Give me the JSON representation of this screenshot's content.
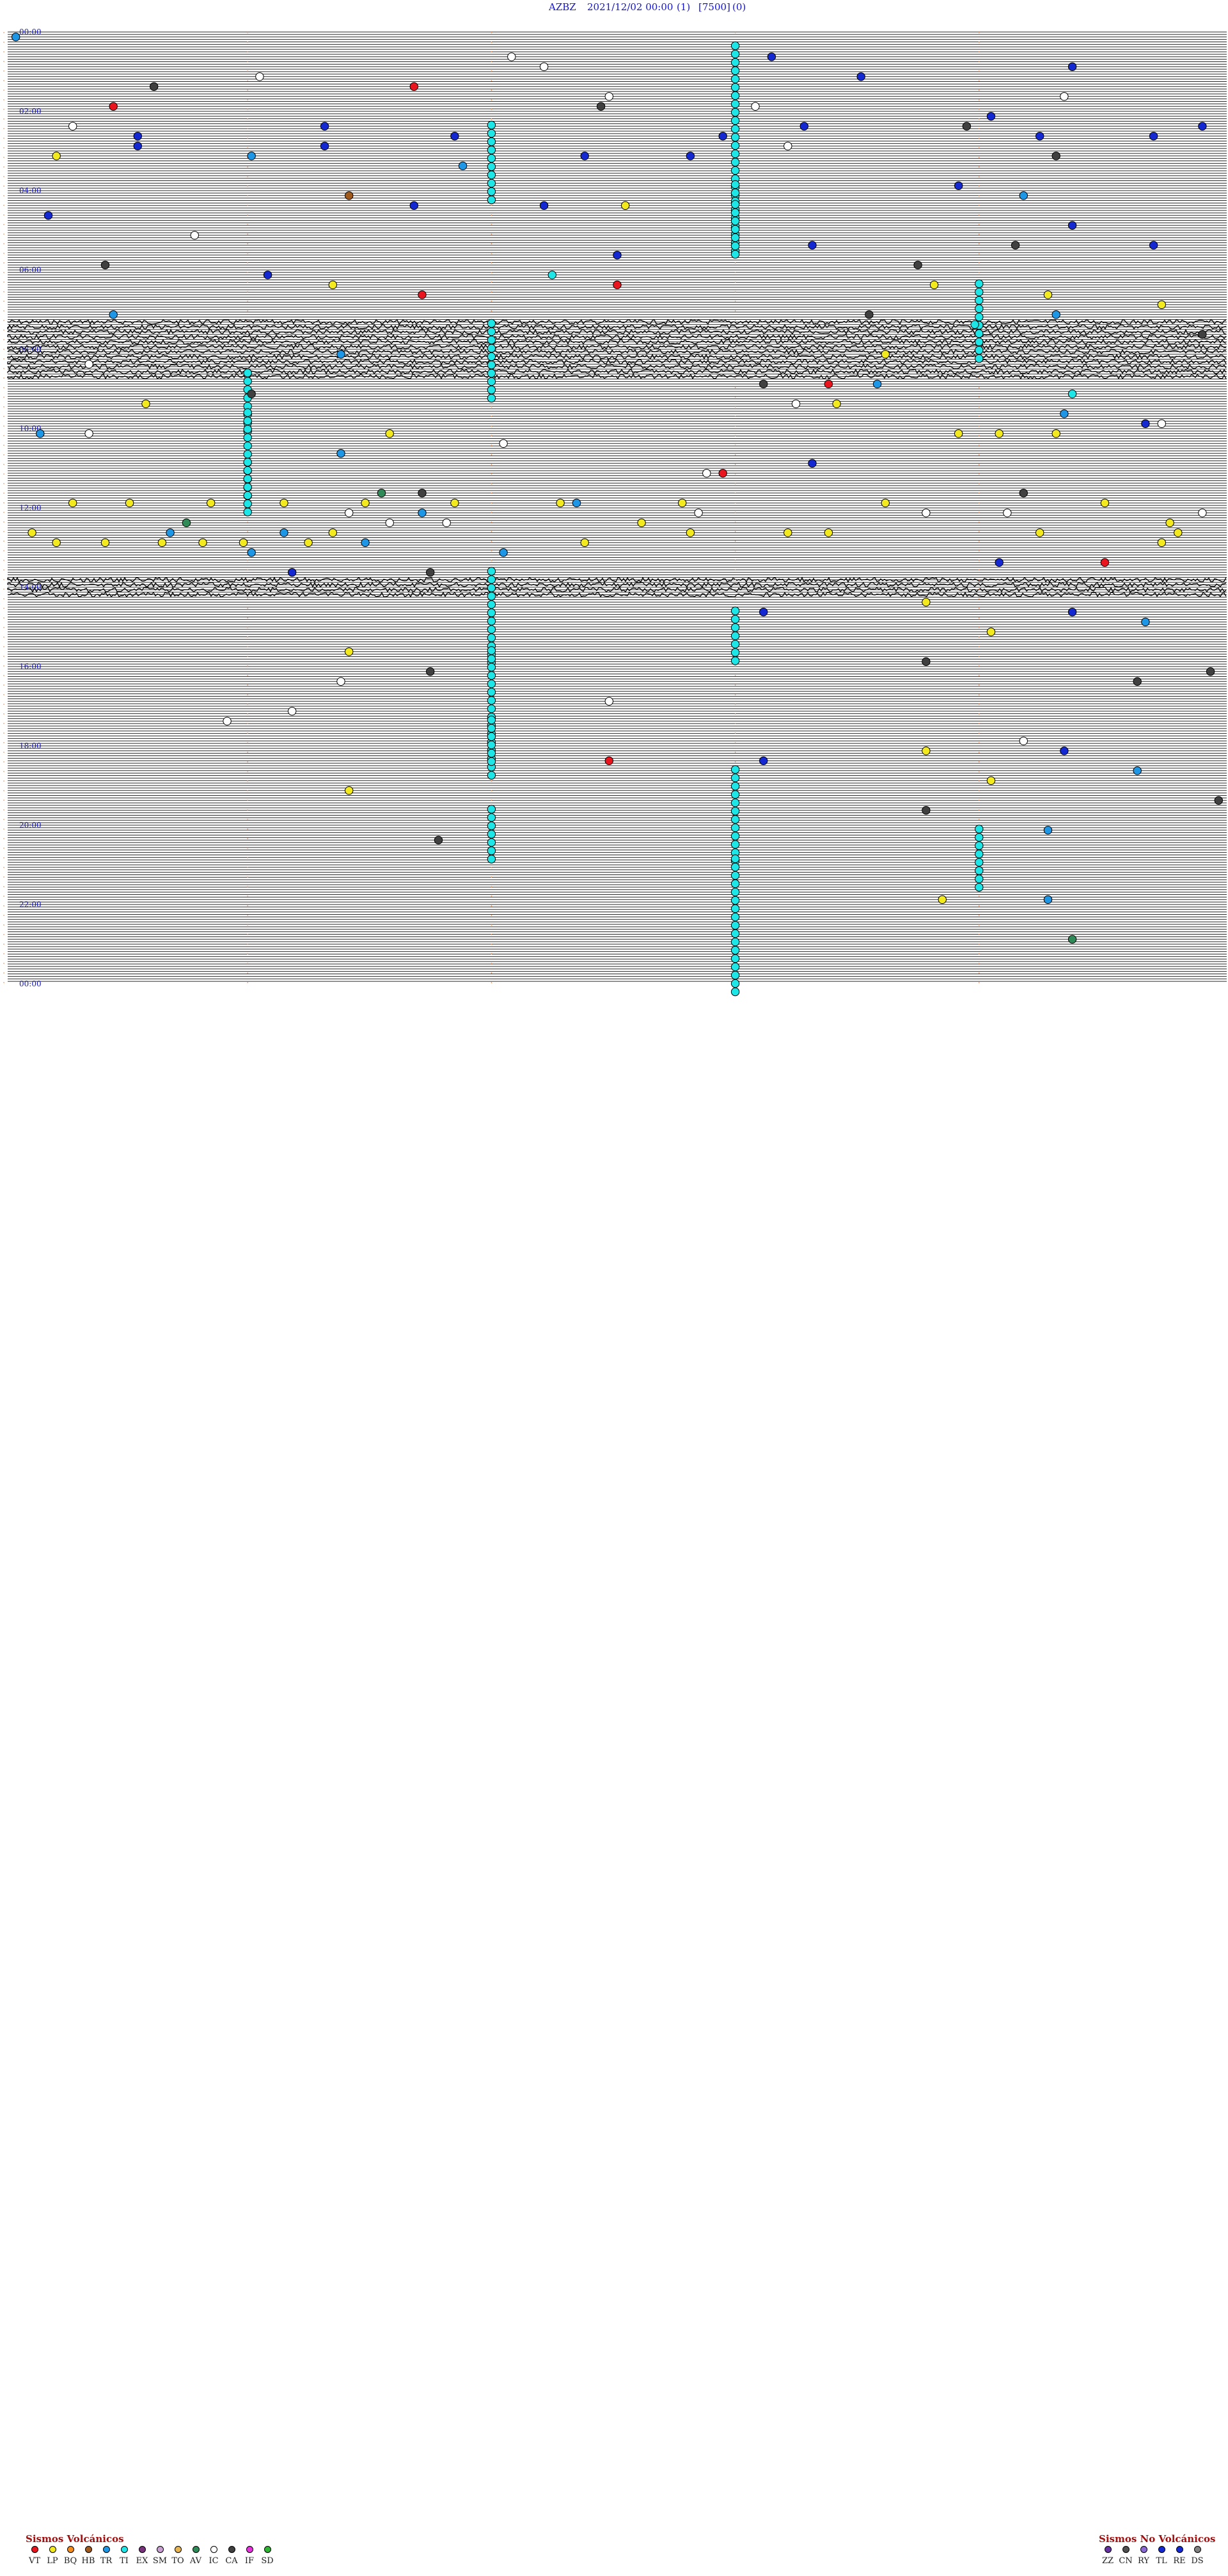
{
  "header": {
    "station": "AZBZ",
    "datetime": "2021/12/02 00:00",
    "channel": "(1)",
    "scale": "[7500]",
    "filter": "(0)"
  },
  "chart_data": {
    "type": "scatter",
    "title": "AZBZ    2021/12/02 00:00    (1)    [7500]  (0)",
    "y_axis": "hour of day (trace rows, one per 15 min)",
    "x_axis": "minute within row",
    "xlim": [
      0,
      15
    ],
    "ylim_hours": [
      0,
      24
    ],
    "hour_labels": [
      "00:00",
      "02:00",
      "04:00",
      "06:00",
      "08:00",
      "10:00",
      "12:00",
      "14:00",
      "16:00",
      "18:00",
      "20:00",
      "22:00",
      "00:00"
    ],
    "grid": true,
    "event_types": {
      "VT": "#e8141e",
      "LP": "#f2ea1e",
      "BQ": "#f58c1e",
      "HB": "#a05a1e",
      "TR": "#1e96e6",
      "TI": "#1ee6e6",
      "EX": "#78327c",
      "SM": "#c8a0d2",
      "TO": "#e6b450",
      "AV": "#2e8b57",
      "IC": "#ffffff",
      "CA": "#404040",
      "IF": "#e632dc",
      "SD": "#2eb432",
      "ZZ": "#6432a0",
      "CN": "#505050",
      "RY": "#8a6ad2",
      "TL": "#1428d2",
      "RE": "#1428d2",
      "DS": "#808080"
    },
    "events": [
      {
        "t": "00:00",
        "x": 0.1,
        "type": "TR"
      },
      {
        "t": "00:30",
        "x": 6.2,
        "type": "IC"
      },
      {
        "t": "00:30",
        "x": 9.4,
        "type": "TL"
      },
      {
        "t": "00:45",
        "x": 13.1,
        "type": "TL"
      },
      {
        "t": "00:45",
        "x": 6.6,
        "type": "IC"
      },
      {
        "t": "01:00",
        "x": 3.1,
        "type": "IC"
      },
      {
        "t": "01:00",
        "x": 10.5,
        "type": "TL"
      },
      {
        "t": "01:15",
        "x": 1.8,
        "type": "CA"
      },
      {
        "t": "01:15",
        "x": 5.0,
        "type": "VT"
      },
      {
        "t": "01:30",
        "x": 7.4,
        "type": "IC"
      },
      {
        "t": "01:30",
        "x": 13.0,
        "type": "IC"
      },
      {
        "t": "01:45",
        "x": 1.3,
        "type": "VT"
      },
      {
        "t": "01:45",
        "x": 7.3,
        "type": "CA"
      },
      {
        "t": "01:45",
        "x": 9.2,
        "type": "IC"
      },
      {
        "t": "02:00",
        "x": 12.1,
        "type": "TL"
      },
      {
        "t": "02:15",
        "x": 0.8,
        "type": "IC"
      },
      {
        "t": "02:15",
        "x": 3.9,
        "type": "TL"
      },
      {
        "t": "02:15",
        "x": 9.8,
        "type": "TL"
      },
      {
        "t": "02:15",
        "x": 11.8,
        "type": "CA"
      },
      {
        "t": "02:15",
        "x": 14.7,
        "type": "TL"
      },
      {
        "t": "02:30",
        "x": 1.6,
        "type": "TL"
      },
      {
        "t": "02:30",
        "x": 5.5,
        "type": "TL"
      },
      {
        "t": "02:30",
        "x": 8.8,
        "type": "TL"
      },
      {
        "t": "02:30",
        "x": 12.7,
        "type": "TL"
      },
      {
        "t": "02:30",
        "x": 14.1,
        "type": "TL"
      },
      {
        "t": "02:45",
        "x": 1.6,
        "type": "TL"
      },
      {
        "t": "02:45",
        "x": 3.9,
        "type": "TL"
      },
      {
        "t": "02:45",
        "x": 9.6,
        "type": "IC"
      },
      {
        "t": "03:00",
        "x": 0.6,
        "type": "LP"
      },
      {
        "t": "03:00",
        "x": 3.0,
        "type": "TR"
      },
      {
        "t": "03:00",
        "x": 7.1,
        "type": "TL"
      },
      {
        "t": "03:00",
        "x": 8.4,
        "type": "TL"
      },
      {
        "t": "03:00",
        "x": 12.9,
        "type": "CA"
      },
      {
        "t": "03:15",
        "x": 5.6,
        "type": "TR"
      },
      {
        "t": "03:45",
        "x": 11.7,
        "type": "TL"
      },
      {
        "t": "04:00",
        "x": 4.2,
        "type": "HB"
      },
      {
        "t": "04:00",
        "x": 12.5,
        "type": "TR"
      },
      {
        "t": "04:15",
        "x": 6.6,
        "type": "TL"
      },
      {
        "t": "04:15",
        "x": 5.0,
        "type": "TL"
      },
      {
        "t": "04:15",
        "x": 7.6,
        "type": "LP"
      },
      {
        "t": "04:30",
        "x": 0.5,
        "type": "TL"
      },
      {
        "t": "04:45",
        "x": 13.1,
        "type": "TL"
      },
      {
        "t": "05:00",
        "x": 2.3,
        "type": "IC"
      },
      {
        "t": "05:15",
        "x": 9.9,
        "type": "TL"
      },
      {
        "t": "05:15",
        "x": 12.4,
        "type": "CA"
      },
      {
        "t": "05:15",
        "x": 14.1,
        "type": "TL"
      },
      {
        "t": "05:30",
        "x": 7.5,
        "type": "TL"
      },
      {
        "t": "05:45",
        "x": 11.2,
        "type": "CA"
      },
      {
        "t": "05:45",
        "x": 1.2,
        "type": "CA"
      },
      {
        "t": "06:00",
        "x": 6.7,
        "type": "TI"
      },
      {
        "t": "06:00",
        "x": 3.2,
        "type": "TL"
      },
      {
        "t": "06:15",
        "x": 11.4,
        "type": "LP"
      },
      {
        "t": "06:15",
        "x": 7.5,
        "type": "VT"
      },
      {
        "t": "06:15",
        "x": 4.0,
        "type": "LP"
      },
      {
        "t": "06:30",
        "x": 12.8,
        "type": "LP"
      },
      {
        "t": "06:30",
        "x": 5.1,
        "type": "VT"
      },
      {
        "t": "06:45",
        "x": 14.2,
        "type": "LP"
      },
      {
        "t": "07:00",
        "x": 1.3,
        "type": "TR"
      },
      {
        "t": "07:00",
        "x": 10.6,
        "type": "CA"
      },
      {
        "t": "07:00",
        "x": 12.9,
        "type": "TR"
      },
      {
        "t": "07:15",
        "x": 11.9,
        "type": "TI"
      },
      {
        "t": "07:30",
        "x": 14.7,
        "type": "CA"
      },
      {
        "t": "08:00",
        "x": 4.1,
        "type": "TR"
      },
      {
        "t": "08:00",
        "x": 10.8,
        "type": "LP"
      },
      {
        "t": "08:15",
        "x": 1.0,
        "type": "IC"
      },
      {
        "t": "08:45",
        "x": 10.1,
        "type": "VT"
      },
      {
        "t": "08:45",
        "x": 10.7,
        "type": "TR"
      },
      {
        "t": "08:45",
        "x": 9.3,
        "type": "CA"
      },
      {
        "t": "09:00",
        "x": 13.1,
        "type": "TI"
      },
      {
        "t": "09:00",
        "x": 3.0,
        "type": "CA"
      },
      {
        "t": "09:15",
        "x": 1.7,
        "type": "LP"
      },
      {
        "t": "09:15",
        "x": 9.7,
        "type": "IC"
      },
      {
        "t": "09:15",
        "x": 10.2,
        "type": "LP"
      },
      {
        "t": "09:30",
        "x": 13.0,
        "type": "TR"
      },
      {
        "t": "09:45",
        "x": 14.0,
        "type": "TL"
      },
      {
        "t": "09:45",
        "x": 14.2,
        "type": "IC"
      },
      {
        "t": "10:00",
        "x": 0.4,
        "type": "TR"
      },
      {
        "t": "10:00",
        "x": 1.0,
        "type": "IC"
      },
      {
        "t": "10:00",
        "x": 4.7,
        "type": "LP"
      },
      {
        "t": "10:00",
        "x": 11.7,
        "type": "LP"
      },
      {
        "t": "10:00",
        "x": 12.2,
        "type": "LP"
      },
      {
        "t": "10:00",
        "x": 12.9,
        "type": "LP"
      },
      {
        "t": "10:15",
        "x": 6.1,
        "type": "IC"
      },
      {
        "t": "10:30",
        "x": 4.1,
        "type": "TR"
      },
      {
        "t": "10:45",
        "x": 9.9,
        "type": "TL"
      },
      {
        "t": "11:00",
        "x": 8.6,
        "type": "IC"
      },
      {
        "t": "11:00",
        "x": 8.8,
        "type": "VT"
      },
      {
        "t": "11:30",
        "x": 12.5,
        "type": "CA"
      },
      {
        "t": "11:30",
        "x": 4.6,
        "type": "AV"
      },
      {
        "t": "11:30",
        "x": 5.1,
        "type": "CA"
      },
      {
        "t": "11:45",
        "x": 0.8,
        "type": "LP"
      },
      {
        "t": "11:45",
        "x": 1.5,
        "type": "LP"
      },
      {
        "t": "11:45",
        "x": 2.5,
        "type": "LP"
      },
      {
        "t": "11:45",
        "x": 3.4,
        "type": "LP"
      },
      {
        "t": "11:45",
        "x": 4.4,
        "type": "LP"
      },
      {
        "t": "11:45",
        "x": 5.5,
        "type": "LP"
      },
      {
        "t": "11:45",
        "x": 6.8,
        "type": "LP"
      },
      {
        "t": "11:45",
        "x": 7.0,
        "type": "TR"
      },
      {
        "t": "11:45",
        "x": 8.3,
        "type": "LP"
      },
      {
        "t": "11:45",
        "x": 10.8,
        "type": "LP"
      },
      {
        "t": "11:45",
        "x": 13.5,
        "type": "LP"
      },
      {
        "t": "12:00",
        "x": 4.2,
        "type": "IC"
      },
      {
        "t": "12:00",
        "x": 5.1,
        "type": "TR"
      },
      {
        "t": "12:00",
        "x": 8.5,
        "type": "IC"
      },
      {
        "t": "12:00",
        "x": 11.3,
        "type": "IC"
      },
      {
        "t": "12:00",
        "x": 12.3,
        "type": "IC"
      },
      {
        "t": "12:00",
        "x": 14.7,
        "type": "IC"
      },
      {
        "t": "12:15",
        "x": 4.7,
        "type": "IC"
      },
      {
        "t": "12:15",
        "x": 5.4,
        "type": "IC"
      },
      {
        "t": "12:15",
        "x": 2.2,
        "type": "AV"
      },
      {
        "t": "12:15",
        "x": 7.8,
        "type": "LP"
      },
      {
        "t": "12:15",
        "x": 14.3,
        "type": "LP"
      },
      {
        "t": "12:30",
        "x": 0.3,
        "type": "LP"
      },
      {
        "t": "12:30",
        "x": 2.0,
        "type": "TR"
      },
      {
        "t": "12:30",
        "x": 3.4,
        "type": "TR"
      },
      {
        "t": "12:30",
        "x": 4.0,
        "type": "LP"
      },
      {
        "t": "12:30",
        "x": 8.4,
        "type": "LP"
      },
      {
        "t": "12:30",
        "x": 9.6,
        "type": "LP"
      },
      {
        "t": "12:30",
        "x": 10.1,
        "type": "LP"
      },
      {
        "t": "12:30",
        "x": 12.7,
        "type": "LP"
      },
      {
        "t": "12:30",
        "x": 14.4,
        "type": "LP"
      },
      {
        "t": "12:45",
        "x": 0.6,
        "type": "LP"
      },
      {
        "t": "12:45",
        "x": 1.2,
        "type": "LP"
      },
      {
        "t": "12:45",
        "x": 1.9,
        "type": "LP"
      },
      {
        "t": "12:45",
        "x": 2.4,
        "type": "LP"
      },
      {
        "t": "12:45",
        "x": 2.9,
        "type": "LP"
      },
      {
        "t": "12:45",
        "x": 3.7,
        "type": "LP"
      },
      {
        "t": "12:45",
        "x": 4.4,
        "type": "TR"
      },
      {
        "t": "12:45",
        "x": 7.1,
        "type": "LP"
      },
      {
        "t": "12:45",
        "x": 14.2,
        "type": "LP"
      },
      {
        "t": "13:00",
        "x": 3.0,
        "type": "TR"
      },
      {
        "t": "13:00",
        "x": 6.1,
        "type": "TR"
      },
      {
        "t": "13:15",
        "x": 12.2,
        "type": "TL"
      },
      {
        "t": "13:15",
        "x": 13.5,
        "type": "VT"
      },
      {
        "t": "13:30",
        "x": 3.5,
        "type": "TL"
      },
      {
        "t": "13:30",
        "x": 5.2,
        "type": "CA"
      },
      {
        "t": "14:15",
        "x": 11.3,
        "type": "LP"
      },
      {
        "t": "14:30",
        "x": 13.1,
        "type": "TL"
      },
      {
        "t": "14:30",
        "x": 9.3,
        "type": "TL"
      },
      {
        "t": "14:45",
        "x": 14.0,
        "type": "TR"
      },
      {
        "t": "15:00",
        "x": 12.1,
        "type": "LP"
      },
      {
        "t": "15:30",
        "x": 4.2,
        "type": "LP"
      },
      {
        "t": "15:45",
        "x": 11.3,
        "type": "CA"
      },
      {
        "t": "16:00",
        "x": 5.2,
        "type": "CA"
      },
      {
        "t": "16:00",
        "x": 14.8,
        "type": "CA"
      },
      {
        "t": "16:15",
        "x": 13.9,
        "type": "CA"
      },
      {
        "t": "16:15",
        "x": 4.1,
        "type": "IC"
      },
      {
        "t": "16:45",
        "x": 7.4,
        "type": "IC"
      },
      {
        "t": "17:00",
        "x": 3.5,
        "type": "IC"
      },
      {
        "t": "17:15",
        "x": 2.7,
        "type": "IC"
      },
      {
        "t": "17:45",
        "x": 12.5,
        "type": "IC"
      },
      {
        "t": "18:00",
        "x": 11.3,
        "type": "LP"
      },
      {
        "t": "18:00",
        "x": 13.0,
        "type": "TL"
      },
      {
        "t": "18:15",
        "x": 7.4,
        "type": "VT"
      },
      {
        "t": "18:15",
        "x": 9.3,
        "type": "TL"
      },
      {
        "t": "18:30",
        "x": 13.9,
        "type": "TR"
      },
      {
        "t": "18:45",
        "x": 12.1,
        "type": "LP"
      },
      {
        "t": "19:00",
        "x": 4.2,
        "type": "LP"
      },
      {
        "t": "19:15",
        "x": 14.9,
        "type": "CA"
      },
      {
        "t": "19:30",
        "x": 11.3,
        "type": "CA"
      },
      {
        "t": "20:00",
        "x": 12.8,
        "type": "TR"
      },
      {
        "t": "20:15",
        "x": 5.3,
        "type": "CA"
      },
      {
        "t": "21:45",
        "x": 11.5,
        "type": "LP"
      },
      {
        "t": "21:45",
        "x": 12.8,
        "type": "TR"
      },
      {
        "t": "22:45",
        "x": 13.1,
        "type": "AV"
      }
    ],
    "ti_swarms": [
      {
        "col": 9,
        "start_row": 1,
        "count": 23
      },
      {
        "col": 6,
        "start_row": 9,
        "count": 10
      },
      {
        "col": 9,
        "start_row": 15,
        "count": 9
      },
      {
        "col": 9,
        "start_row": 17,
        "count": 7
      },
      {
        "col": 12,
        "start_row": 25,
        "count": 10
      },
      {
        "col": 6,
        "start_row": 29,
        "count": 10
      },
      {
        "col": 3,
        "start_row": 34,
        "count": 8
      },
      {
        "col": 3,
        "start_row": 38,
        "count": 11
      },
      {
        "col": 3,
        "start_row": 43,
        "count": 7
      },
      {
        "col": 6,
        "start_row": 54,
        "count": 12
      },
      {
        "col": 9,
        "start_row": 58,
        "count": 7
      },
      {
        "col": 6,
        "start_row": 62,
        "count": 16
      },
      {
        "col": 6,
        "start_row": 69,
        "count": 6
      },
      {
        "col": 9,
        "start_row": 74,
        "count": 12
      },
      {
        "col": 6,
        "start_row": 78,
        "count": 7
      },
      {
        "col": 12,
        "start_row": 80,
        "count": 8
      },
      {
        "col": 9,
        "start_row": 83,
        "count": 17
      }
    ],
    "noisy_rows": [
      29,
      30,
      31,
      32,
      33,
      34,
      55,
      56
    ]
  },
  "legend_volcanic": {
    "title": "Sismos Volcánicos",
    "items": [
      {
        "code": "VT",
        "color": "#e8141e"
      },
      {
        "code": "LP",
        "color": "#f2ea1e"
      },
      {
        "code": "BQ",
        "color": "#f58c1e"
      },
      {
        "code": "HB",
        "color": "#a05a1e"
      },
      {
        "code": "TR",
        "color": "#1e96e6"
      },
      {
        "code": "TI",
        "color": "#1ee6e6"
      },
      {
        "code": "EX",
        "color": "#78327c"
      },
      {
        "code": "SM",
        "color": "#c8a0d2"
      },
      {
        "code": "TO",
        "color": "#e6b450"
      },
      {
        "code": "AV",
        "color": "#2e8b57"
      },
      {
        "code": "IC",
        "color": "#ffffff"
      },
      {
        "code": "CA",
        "color": "#404040"
      },
      {
        "code": "IF",
        "color": "#e632dc"
      },
      {
        "code": "SD",
        "color": "#2eb432"
      }
    ]
  },
  "legend_nonvolcanic": {
    "title": "Sismos No Volcánicos",
    "items": [
      {
        "code": "ZZ",
        "color": "#6432a0"
      },
      {
        "code": "CN",
        "color": "#505050"
      },
      {
        "code": "RY",
        "color": "#8a6ad2"
      },
      {
        "code": "TL",
        "color": "#1428d2"
      },
      {
        "code": "RE",
        "color": "#1428d2"
      },
      {
        "code": "DS",
        "color": "#808080"
      }
    ]
  }
}
